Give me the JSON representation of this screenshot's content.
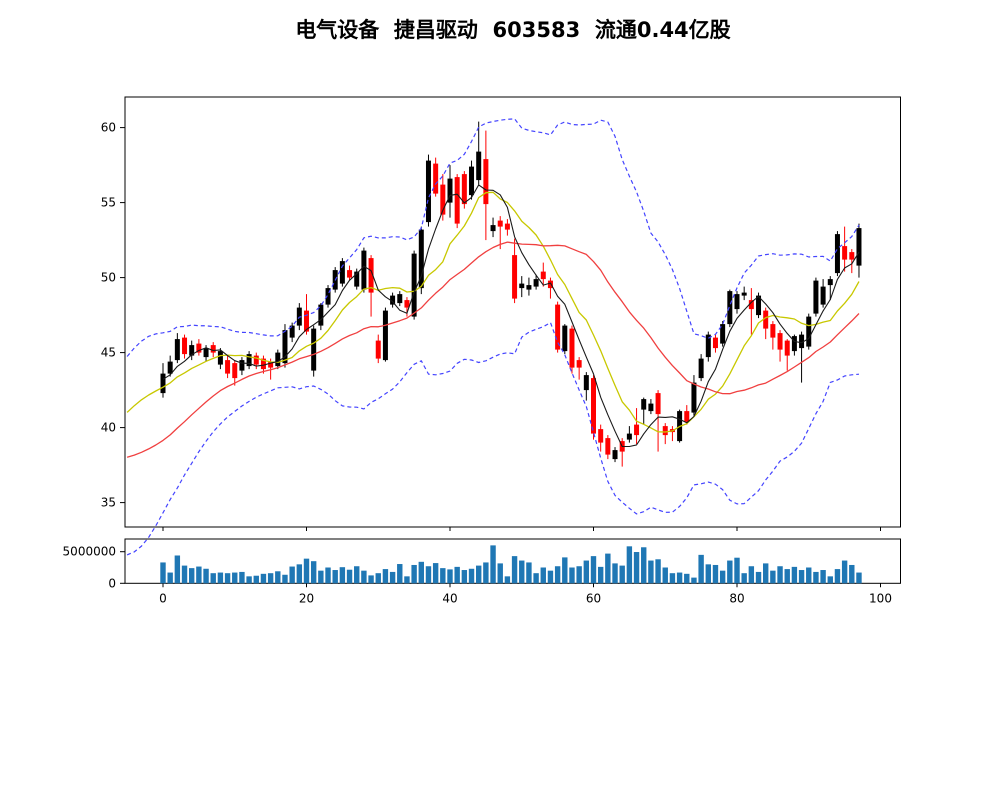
{
  "chart_data": {
    "type": "candlestick+volume",
    "title": "电气设备  捷昌驱动  603583  流通0.44亿股",
    "legend_position": "none",
    "grid": false,
    "price_axis": {
      "ticks": [
        35,
        40,
        45,
        50,
        55,
        60
      ],
      "ylim": [
        32.9,
        62.1
      ]
    },
    "x_axis": {
      "ticks": [
        0,
        20,
        40,
        60,
        80,
        100
      ],
      "xlim": [
        -5.3,
        102.8
      ]
    },
    "volume_axis": {
      "ticks": [
        0,
        5000000
      ],
      "tick_labels": [
        "0",
        "5000000"
      ],
      "ylim": [
        0,
        7000000
      ]
    },
    "colors": {
      "up": "#000000",
      "down": "#ff0000",
      "volume_bar": "#1f77b4",
      "ma_fast": "#1a1a1a",
      "ma_mid": "#c8c800",
      "ma_slow": "#f04040",
      "bollinger": "#4444ff",
      "frame": "#000000"
    },
    "indicators": {
      "ma_fast_window": 5,
      "ma_mid_window": 10,
      "ma_slow_window": 25,
      "bollinger_window": 20,
      "bollinger_k": 2.1
    },
    "pre_close_history": [
      40.0,
      39.2,
      38.4,
      37.6,
      36.8,
      36.0,
      35.2,
      34.6,
      34.2,
      34.0,
      34.2,
      34.6,
      35.2,
      36.0,
      36.8,
      37.6,
      38.4,
      39.2,
      40.0,
      40.6,
      41.1,
      41.5,
      41.9,
      42.2,
      42.5,
      42.7,
      42.9,
      43.1,
      43.2,
      43.3
    ],
    "ohlc": [
      [
        42.3,
        44.3,
        42.0,
        43.6
      ],
      [
        43.6,
        44.8,
        43.4,
        44.4
      ],
      [
        44.5,
        46.3,
        44.3,
        45.9
      ],
      [
        46.0,
        46.2,
        44.6,
        44.9
      ],
      [
        44.8,
        45.8,
        44.5,
        45.5
      ],
      [
        45.6,
        45.9,
        44.8,
        45.0
      ],
      [
        44.7,
        45.5,
        44.4,
        45.3
      ],
      [
        45.5,
        45.7,
        44.7,
        45.0
      ],
      [
        44.2,
        45.3,
        43.9,
        45.1
      ],
      [
        44.5,
        44.8,
        43.3,
        43.6
      ],
      [
        44.3,
        44.5,
        42.8,
        43.3
      ],
      [
        43.8,
        44.7,
        43.5,
        44.5
      ],
      [
        44.1,
        45.1,
        43.9,
        44.9
      ],
      [
        44.8,
        45.0,
        43.9,
        44.2
      ],
      [
        44.6,
        44.8,
        43.6,
        43.9
      ],
      [
        44.4,
        44.6,
        43.2,
        44.0
      ],
      [
        44.1,
        45.2,
        43.9,
        45.0
      ],
      [
        44.3,
        46.9,
        44.0,
        46.5
      ],
      [
        46.0,
        47.0,
        45.7,
        46.8
      ],
      [
        46.8,
        48.3,
        46.5,
        48.0
      ],
      [
        47.8,
        48.9,
        46.2,
        46.4
      ],
      [
        43.8,
        46.8,
        43.4,
        46.6
      ],
      [
        46.8,
        48.3,
        46.5,
        48.2
      ],
      [
        48.2,
        49.5,
        48.0,
        49.3
      ],
      [
        49.2,
        50.7,
        49.0,
        50.5
      ],
      [
        49.6,
        51.3,
        49.4,
        51.1
      ],
      [
        50.5,
        50.8,
        49.8,
        50.0
      ],
      [
        49.4,
        50.6,
        49.2,
        50.4
      ],
      [
        49.2,
        52.0,
        49.0,
        51.8
      ],
      [
        51.3,
        51.5,
        47.4,
        49.0
      ],
      [
        45.8,
        46.2,
        44.3,
        44.6
      ],
      [
        44.5,
        48.0,
        44.4,
        47.8
      ],
      [
        48.2,
        49.0,
        48.0,
        48.8
      ],
      [
        48.3,
        49.1,
        48.1,
        48.9
      ],
      [
        48.5,
        48.7,
        47.4,
        48.0
      ],
      [
        47.4,
        51.8,
        47.2,
        51.6
      ],
      [
        49.3,
        53.4,
        48.9,
        53.2
      ],
      [
        53.7,
        58.2,
        53.4,
        57.8
      ],
      [
        57.6,
        58.0,
        55.4,
        55.6
      ],
      [
        56.2,
        56.9,
        53.8,
        54.2
      ],
      [
        55.0,
        57.5,
        54.0,
        56.6
      ],
      [
        56.7,
        56.9,
        53.3,
        53.6
      ],
      [
        56.9,
        57.1,
        54.6,
        54.9
      ],
      [
        55.5,
        57.8,
        55.2,
        57.4
      ],
      [
        56.5,
        60.4,
        56.2,
        58.4
      ],
      [
        57.9,
        59.8,
        52.5,
        54.9
      ],
      [
        53.1,
        54.0,
        52.7,
        53.5
      ],
      [
        53.8,
        54.1,
        51.9,
        53.4
      ],
      [
        53.6,
        53.9,
        52.8,
        53.2
      ],
      [
        51.5,
        52.6,
        48.3,
        48.6
      ],
      [
        49.3,
        50.1,
        48.7,
        49.6
      ],
      [
        49.2,
        50.0,
        48.8,
        49.5
      ],
      [
        49.4,
        50.2,
        49.2,
        49.9
      ],
      [
        50.4,
        51.0,
        49.4,
        49.9
      ],
      [
        49.8,
        50.0,
        48.6,
        49.3
      ],
      [
        48.2,
        48.4,
        45.0,
        45.2
      ],
      [
        45.1,
        46.9,
        44.9,
        46.8
      ],
      [
        46.6,
        46.8,
        43.6,
        44.0
      ],
      [
        44.5,
        44.7,
        43.2,
        44.0
      ],
      [
        42.5,
        43.7,
        41.8,
        43.5
      ],
      [
        43.3,
        43.5,
        39.2,
        39.6
      ],
      [
        39.9,
        40.2,
        38.4,
        39.0
      ],
      [
        39.3,
        39.5,
        37.9,
        38.2
      ],
      [
        37.9,
        38.7,
        37.7,
        38.5
      ],
      [
        39.1,
        39.3,
        37.4,
        38.4
      ],
      [
        39.2,
        40.1,
        39.0,
        39.6
      ],
      [
        40.2,
        41.3,
        38.9,
        39.5
      ],
      [
        41.2,
        42.0,
        40.2,
        41.9
      ],
      [
        41.1,
        41.9,
        40.9,
        41.6
      ],
      [
        42.3,
        42.5,
        38.4,
        40.9
      ],
      [
        40.1,
        40.3,
        38.9,
        39.5
      ],
      [
        39.9,
        40.1,
        39.1,
        39.7
      ],
      [
        39.1,
        41.2,
        39.0,
        41.1
      ],
      [
        41.1,
        41.5,
        40.2,
        40.4
      ],
      [
        41.0,
        43.5,
        40.8,
        43.0
      ],
      [
        43.3,
        44.9,
        43.1,
        44.6
      ],
      [
        44.7,
        46.4,
        44.4,
        46.2
      ],
      [
        46.0,
        46.2,
        45.0,
        45.3
      ],
      [
        45.6,
        47.1,
        45.4,
        46.9
      ],
      [
        46.9,
        49.2,
        46.7,
        49.1
      ],
      [
        47.9,
        49.1,
        47.6,
        48.9
      ],
      [
        48.8,
        49.4,
        48.5,
        49.0
      ],
      [
        48.5,
        49.3,
        46.2,
        47.9
      ],
      [
        47.5,
        49.0,
        47.3,
        48.8
      ],
      [
        47.8,
        48.0,
        45.9,
        46.6
      ],
      [
        46.9,
        47.1,
        45.2,
        46.0
      ],
      [
        46.3,
        46.5,
        44.4,
        45.2
      ],
      [
        45.8,
        45.9,
        43.8,
        44.8
      ],
      [
        45.1,
        46.2,
        44.8,
        46.1
      ],
      [
        45.3,
        46.4,
        43.0,
        46.2
      ],
      [
        45.4,
        47.6,
        45.2,
        47.4
      ],
      [
        47.6,
        50.0,
        47.4,
        49.8
      ],
      [
        48.2,
        49.9,
        48.0,
        49.4
      ],
      [
        49.5,
        50.1,
        48.5,
        49.9
      ],
      [
        50.3,
        53.1,
        50.1,
        52.9
      ],
      [
        52.1,
        53.4,
        50.4,
        51.2
      ],
      [
        51.7,
        51.9,
        50.3,
        51.2
      ],
      [
        50.8,
        53.6,
        50.0,
        53.3
      ]
    ],
    "volume": [
      3300000,
      1700000,
      4400000,
      2800000,
      2400000,
      2650000,
      2300000,
      1600000,
      1700000,
      1600000,
      1700000,
      1800000,
      1100000,
      1200000,
      1500000,
      1600000,
      1900000,
      1350000,
      2650000,
      3000000,
      3900000,
      3500000,
      2000000,
      2500000,
      2100000,
      2550000,
      2150000,
      2700000,
      2000000,
      1250000,
      1600000,
      2250000,
      1800000,
      3050000,
      1100000,
      2900000,
      3400000,
      2700000,
      3200000,
      2400000,
      2200000,
      2600000,
      2100000,
      2300000,
      2800000,
      3300000,
      6000000,
      3150000,
      1100000,
      4300000,
      3600000,
      3300000,
      1600000,
      2500000,
      2000000,
      2700000,
      4100000,
      2500000,
      2700000,
      3600000,
      4300000,
      2600000,
      4700000,
      3150000,
      2800000,
      5850000,
      4950000,
      5700000,
      3600000,
      3800000,
      2500000,
      1600000,
      1700000,
      1500000,
      900000,
      4500000,
      3000000,
      2900000,
      2000000,
      3600000,
      4050000,
      1600000,
      2700000,
      1800000,
      3150000,
      2000000,
      2700000,
      2250000,
      2600000,
      2100000,
      2500000,
      1800000,
      2100000,
      1100000,
      2250000,
      3600000,
      2900000,
      1700000
    ]
  }
}
